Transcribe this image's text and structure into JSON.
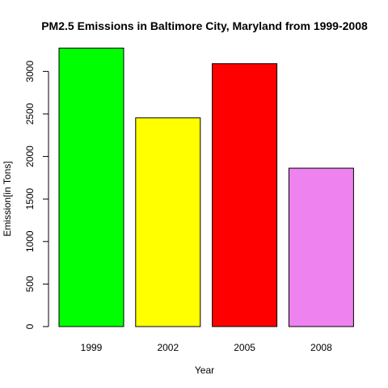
{
  "chart_data": {
    "type": "bar",
    "title": "PM2.5 Emissions in Baltimore City, Maryland from 1999-2008",
    "xlabel": "Year",
    "ylabel": "Emission[in Tons]",
    "categories": [
      "1999",
      "2002",
      "2005",
      "2008"
    ],
    "values": [
      3274.18,
      2453.92,
      3091.35,
      1862.28
    ],
    "colors": [
      "#00ff00",
      "#ffff00",
      "#ff0000",
      "#ee82ee"
    ],
    "y_ticks": [
      0,
      500,
      1000,
      1500,
      2000,
      2500,
      3000
    ],
    "ylim": [
      0,
      3274.18
    ],
    "grid": false,
    "legend": "none"
  }
}
